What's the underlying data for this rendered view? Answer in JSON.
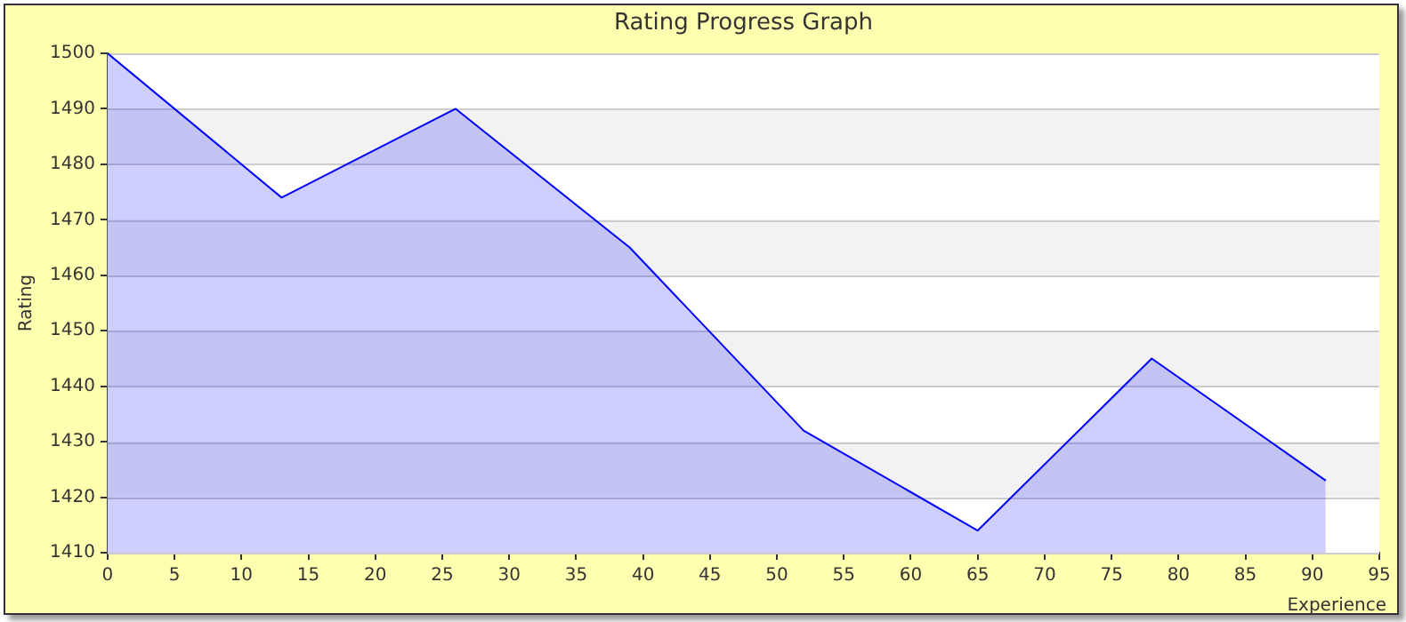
{
  "chart_data": {
    "type": "area",
    "title": "Rating Progress Graph",
    "xlabel": "Experience",
    "ylabel": "Rating",
    "x": [
      0,
      13,
      26,
      39,
      52,
      65,
      78,
      91
    ],
    "series": [
      {
        "color": "#0000ff",
        "values": [
          1500,
          1474,
          1490,
          1465,
          1432,
          1414,
          1445,
          1423
        ]
      }
    ],
    "xlim": [
      0,
      95
    ],
    "xticks": [
      0,
      5,
      10,
      15,
      20,
      25,
      30,
      35,
      40,
      45,
      50,
      55,
      60,
      65,
      70,
      75,
      80,
      85,
      90,
      95
    ],
    "ylim": [
      1410,
      1500
    ],
    "yticks": [
      1410,
      1420,
      1430,
      1440,
      1450,
      1460,
      1470,
      1480,
      1490,
      1500
    ],
    "grid": "y",
    "legend": false,
    "marker": "none"
  }
}
